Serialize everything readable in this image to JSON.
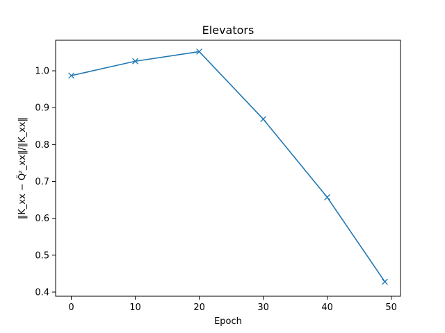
{
  "chart_data": {
    "type": "line",
    "title": "Elevators",
    "xlabel": "Epoch",
    "ylabel": "‖K_xx − Q̃ᶻ_xx‖/‖K_xx‖",
    "xlim": [
      -2.45,
      51.45
    ],
    "ylim": [
      0.3887,
      1.0829
    ],
    "xticks": [
      0,
      10,
      20,
      30,
      40,
      50
    ],
    "yticks": [
      0.4,
      0.5,
      0.6,
      0.7,
      0.8,
      0.9,
      1.0
    ],
    "xtick_labels": [
      "0",
      "10",
      "20",
      "30",
      "40",
      "50"
    ],
    "ytick_labels": [
      "0.4",
      "0.5",
      "0.6",
      "0.7",
      "0.8",
      "0.9",
      "1.0"
    ],
    "grid": false,
    "series": [
      {
        "x": [
          0,
          10,
          20,
          30,
          40,
          49
        ],
        "y": [
          0.987,
          1.026,
          1.052,
          0.869,
          0.657,
          0.428
        ],
        "color": "#1f77b4",
        "marker": "x"
      }
    ]
  }
}
